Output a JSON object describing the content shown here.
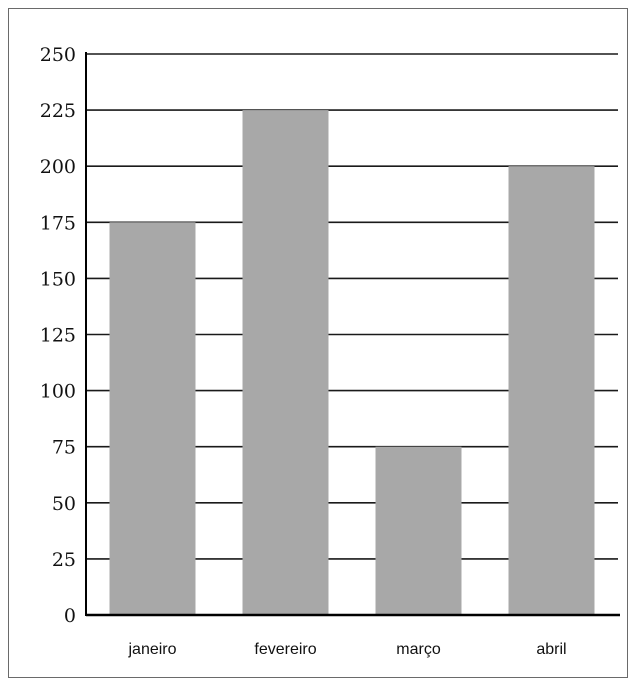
{
  "chart_data": {
    "type": "bar",
    "categories": [
      "janeiro",
      "fevereiro",
      "março",
      "abril"
    ],
    "values": [
      175,
      225,
      75,
      200
    ],
    "title": "",
    "xlabel": "",
    "ylabel": "",
    "ylim": [
      0,
      250
    ],
    "yticks": [
      0,
      25,
      50,
      75,
      100,
      125,
      150,
      175,
      200,
      225,
      250
    ],
    "grid": true,
    "legend": "none",
    "colors": {
      "bar": "#a8a8a8",
      "grid": "#1a1a1a",
      "axis": "#000000"
    }
  }
}
